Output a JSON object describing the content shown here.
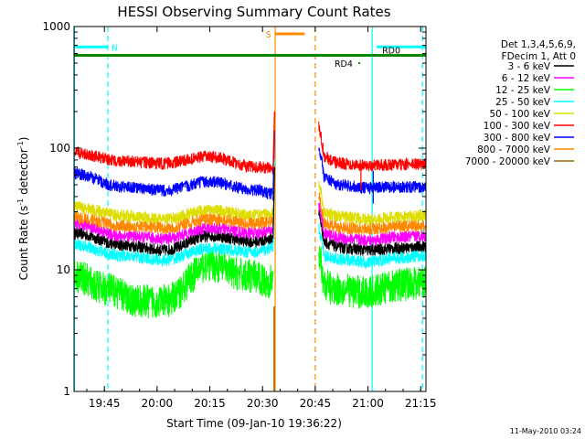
{
  "chart_data": {
    "type": "line",
    "title": "HESSI Observing Summary Count Rates",
    "xlabel": "Start Time (09-Jan-10 19:36:22)",
    "ylabel_main": "Count Rate (s",
    "ylabel_sup1": "-1",
    "ylabel_mid": " detector",
    "ylabel_sup2": "-1",
    "ylabel_end": ")",
    "yscale": "log",
    "ylim": [
      1,
      1000
    ],
    "xlim_minutes": [
      36.37,
      136.5
    ],
    "x_ticks": [
      {
        "label": "19:45",
        "min": 45
      },
      {
        "label": "20:00",
        "min": 60
      },
      {
        "label": "20:15",
        "min": 75
      },
      {
        "label": "20:30",
        "min": 90
      },
      {
        "label": "20:45",
        "min": 105
      },
      {
        "label": "21:00",
        "min": 120
      },
      {
        "label": "21:15",
        "min": 135
      }
    ],
    "y_ticks": [
      {
        "label": "1",
        "value": 1
      },
      {
        "label": "10",
        "value": 10
      },
      {
        "label": "100",
        "value": 100
      },
      {
        "label": "1000",
        "value": 1000
      }
    ],
    "legend_header": [
      "Det 1,3,4,5,6,9,",
      "FDecim 1, Att 0"
    ],
    "legend_position": "right",
    "series": [
      {
        "name": "3 - 6 keV",
        "color": "#000000",
        "pre": [
          [
            36.4,
            20
          ],
          [
            50,
            16
          ],
          [
            62,
            14.5
          ],
          [
            75,
            19
          ],
          [
            88,
            17
          ],
          [
            93,
            18
          ]
        ],
        "post": [
          [
            106,
            17
          ],
          [
            114,
            15
          ],
          [
            120,
            14.5
          ],
          [
            128,
            15
          ],
          [
            136.4,
            15.5
          ]
        ]
      },
      {
        "name": "6 - 12 keV",
        "color": "#ff00ff",
        "pre": [
          [
            36.4,
            24
          ],
          [
            50,
            19
          ],
          [
            62,
            18
          ],
          [
            75,
            22
          ],
          [
            88,
            20
          ],
          [
            93,
            21
          ]
        ],
        "post": [
          [
            106,
            20
          ],
          [
            114,
            18
          ],
          [
            120,
            17.5
          ],
          [
            128,
            18.5
          ],
          [
            136.4,
            19
          ]
        ]
      },
      {
        "name": "12 - 25 keV",
        "color": "#00ff00",
        "pre": [
          [
            36.4,
            9
          ],
          [
            45,
            7
          ],
          [
            55,
            5.5
          ],
          [
            62,
            5.5
          ],
          [
            75,
            11
          ],
          [
            85,
            9
          ],
          [
            93,
            8
          ]
        ],
        "post": [
          [
            106,
            8
          ],
          [
            110,
            7
          ],
          [
            120,
            6.5
          ],
          [
            128,
            7.5
          ],
          [
            136.4,
            8
          ]
        ]
      },
      {
        "name": "25 - 50 keV",
        "color": "#00ffff",
        "pre": [
          [
            36.4,
            16
          ],
          [
            50,
            13
          ],
          [
            62,
            12
          ],
          [
            75,
            15
          ],
          [
            88,
            14
          ],
          [
            93,
            15
          ]
        ],
        "post": [
          [
            106,
            13
          ],
          [
            114,
            12
          ],
          [
            120,
            11.5
          ],
          [
            128,
            12.5
          ],
          [
            136.4,
            13
          ]
        ]
      },
      {
        "name": "50 - 100 keV",
        "color": "#dddd00",
        "pre": [
          [
            36.4,
            33
          ],
          [
            50,
            28
          ],
          [
            62,
            26
          ],
          [
            75,
            31
          ],
          [
            88,
            28
          ],
          [
            93,
            29
          ]
        ],
        "post": [
          [
            106,
            30
          ],
          [
            114,
            27
          ],
          [
            120,
            26
          ],
          [
            128,
            27
          ],
          [
            136.4,
            28
          ]
        ]
      },
      {
        "name": "100 - 300 keV",
        "color": "#ff0000",
        "pre": [
          [
            36.4,
            92
          ],
          [
            50,
            78
          ],
          [
            62,
            75
          ],
          [
            75,
            85
          ],
          [
            88,
            70
          ],
          [
            93,
            68
          ]
        ],
        "post": [
          [
            106,
            88
          ],
          [
            112,
            75
          ],
          [
            120,
            72
          ],
          [
            128,
            73
          ],
          [
            136.4,
            74
          ]
        ]
      },
      {
        "name": "300 - 800 keV",
        "color": "#0000ff",
        "pre": [
          [
            36.4,
            62
          ],
          [
            50,
            48
          ],
          [
            62,
            45
          ],
          [
            75,
            53
          ],
          [
            88,
            45
          ],
          [
            93,
            42
          ]
        ],
        "post": [
          [
            106,
            60
          ],
          [
            112,
            50
          ],
          [
            120,
            47
          ],
          [
            128,
            48
          ],
          [
            136.4,
            48
          ]
        ]
      },
      {
        "name": "800 - 7000 keV",
        "color": "#ff8800",
        "pre": [
          [
            36.4,
            27
          ],
          [
            50,
            23
          ],
          [
            62,
            22
          ],
          [
            75,
            26
          ],
          [
            88,
            24
          ],
          [
            93,
            25
          ]
        ],
        "post": [
          [
            106,
            24
          ],
          [
            114,
            22
          ],
          [
            120,
            21.5
          ],
          [
            128,
            22.5
          ],
          [
            136.4,
            23
          ]
        ]
      },
      {
        "name": "7000 - 20000 keV",
        "color": "#996600",
        "pre": [],
        "post": []
      }
    ],
    "flag_bars": [
      {
        "label": "N",
        "color": "#00ffff",
        "from": 36.4,
        "to": 46,
        "level": 680
      },
      {
        "label": "",
        "color": "#00ffff",
        "from": 122.5,
        "to": 136.4,
        "level": 680
      },
      {
        "label": "",
        "color": "#008800",
        "from": 36.4,
        "to": 136.4,
        "level": 580
      },
      {
        "label": "S",
        "color": "#ff8800",
        "from": 93.5,
        "to": 102,
        "level": 870
      },
      {
        "label": "RD0",
        "color": "#008800",
        "from": 123,
        "to": 123,
        "level": 580
      },
      {
        "label": "RD4",
        "color": "#008800",
        "from": 117.5,
        "to": 117.5,
        "level": 500
      }
    ],
    "vertical_lines": [
      {
        "color": "#00ffff",
        "style": "dashed",
        "x": 46
      },
      {
        "color": "#00ffff",
        "style": "dashed",
        "x": 135.5
      },
      {
        "color": "#00ffff",
        "style": "solid",
        "x": 36.5
      },
      {
        "color": "#00ffff",
        "style": "solid",
        "x": 121.2
      },
      {
        "color": "#ff8800",
        "style": "solid",
        "x": 93.6
      },
      {
        "color": "#ff8800",
        "style": "dashed",
        "x": 105
      }
    ],
    "timestamp": "11-May-2010 03:24"
  }
}
